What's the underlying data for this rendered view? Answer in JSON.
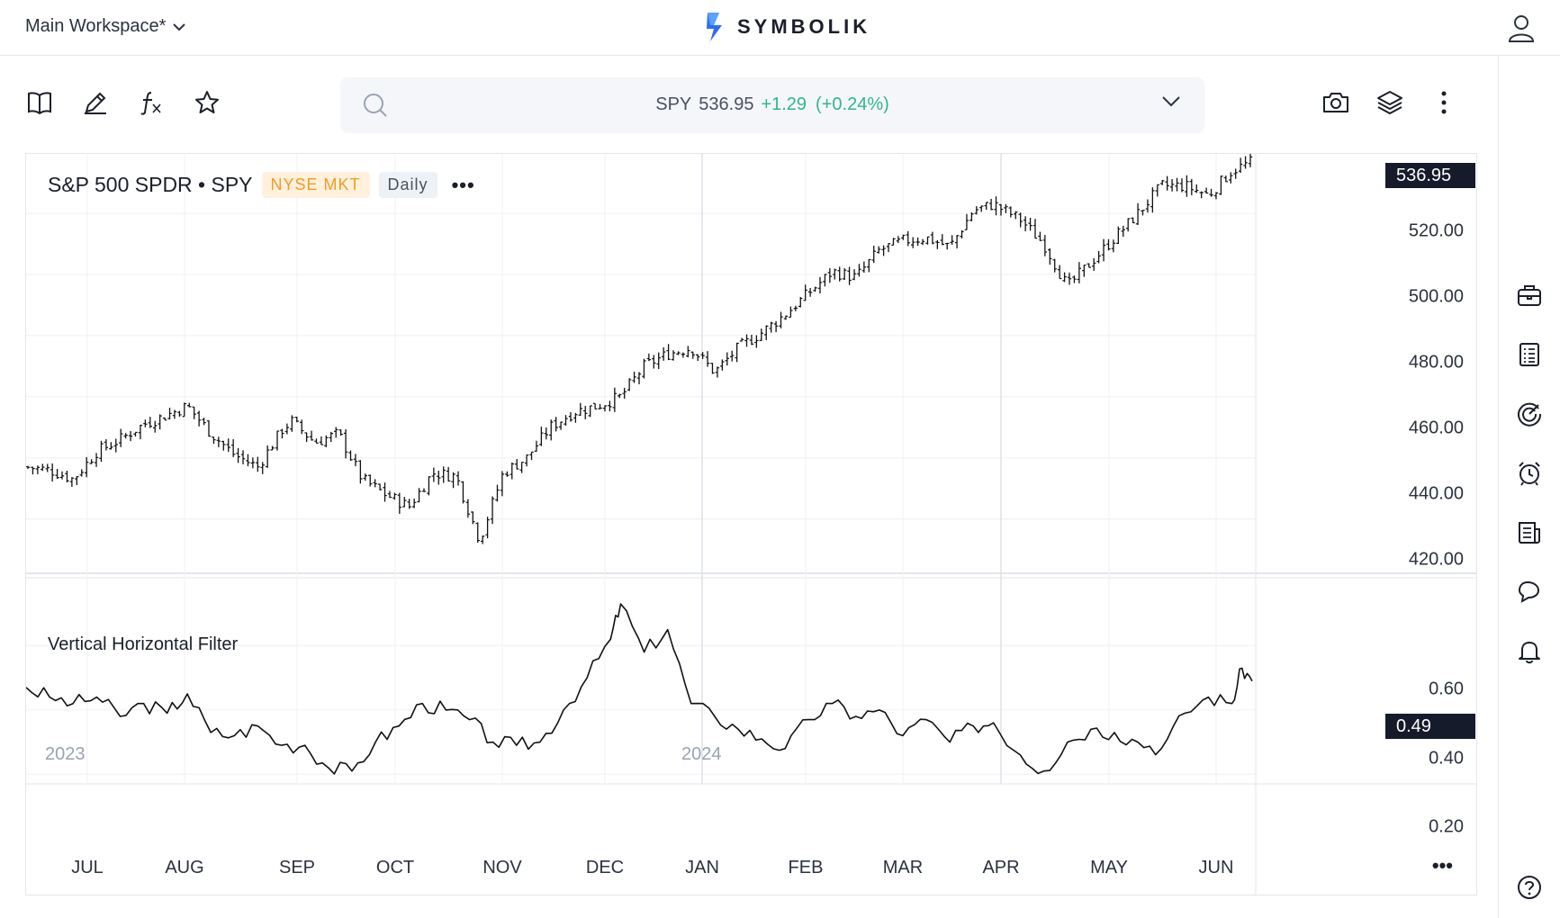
{
  "header": {
    "workspace_label": "Main Workspace*",
    "brand": "SYMBOLIK"
  },
  "search": {
    "symbol": "SPY",
    "price": "536.95",
    "change": "+1.29",
    "change_pct": "(+0.24%)"
  },
  "chart": {
    "title": "S&P 500 SPDR • SPY",
    "exchange_badge": "NYSE MKT",
    "interval_badge": "Daily",
    "more_label": "•••",
    "price_axis": [
      "536.95",
      "520.00",
      "500.00",
      "480.00",
      "460.00",
      "440.00",
      "420.00"
    ],
    "indicator_title": "Vertical Horizontal Filter",
    "indicator_axis": [
      "0.60",
      "0.49",
      "0.40",
      "0.20"
    ],
    "years": [
      "2023",
      "2024"
    ],
    "months": [
      "JUL",
      "AUG",
      "SEP",
      "OCT",
      "NOV",
      "DEC",
      "JAN",
      "FEB",
      "MAR",
      "APR",
      "MAY",
      "JUN"
    ],
    "axis_more_label": "•••"
  },
  "colors": {
    "positive": "#2fb88a",
    "exchange_badge": "#f29b25",
    "last_price_badge": "#161b2b"
  },
  "icons": {
    "toolbar_left": [
      "book-icon",
      "pencil-icon",
      "function-icon",
      "star-icon"
    ],
    "toolbar_right": [
      "camera-icon",
      "layers-icon",
      "kebab-icon"
    ],
    "sidebar": [
      "briefcase-icon",
      "list-icon",
      "gauge-icon",
      "alarm-icon",
      "news-icon",
      "chat-icon",
      "bell-icon",
      "help-icon"
    ]
  },
  "chart_data": [
    {
      "type": "ohlc",
      "ylim": [
        402.5,
        538
      ],
      "price_labels": [
        520,
        500,
        480,
        460,
        440,
        420
      ],
      "last_value": 536.95,
      "x_range": [
        "2023-06-14",
        "2024-06-13"
      ],
      "month_ticks": [
        "JUL",
        "AUG",
        "SEP",
        "OCT",
        "NOV",
        "DEC",
        "JAN",
        "FEB",
        "MAR",
        "APR",
        "MAY",
        "JUN"
      ],
      "series_close": [
        {
          "date": "2023-06-14",
          "close": 437
        },
        {
          "date": "2023-06-21",
          "close": 436
        },
        {
          "date": "2023-06-28",
          "close": 433
        },
        {
          "date": "2023-07-05",
          "close": 442
        },
        {
          "date": "2023-07-12",
          "close": 446
        },
        {
          "date": "2023-07-19",
          "close": 451
        },
        {
          "date": "2023-07-26",
          "close": 454
        },
        {
          "date": "2023-08-01",
          "close": 457
        },
        {
          "date": "2023-08-08",
          "close": 448
        },
        {
          "date": "2023-08-15",
          "close": 441
        },
        {
          "date": "2023-08-22",
          "close": 437
        },
        {
          "date": "2023-08-29",
          "close": 449
        },
        {
          "date": "2023-09-01",
          "close": 452
        },
        {
          "date": "2023-09-08",
          "close": 445
        },
        {
          "date": "2023-09-15",
          "close": 448
        },
        {
          "date": "2023-09-22",
          "close": 433
        },
        {
          "date": "2023-09-29",
          "close": 428
        },
        {
          "date": "2023-10-06",
          "close": 424
        },
        {
          "date": "2023-10-13",
          "close": 435
        },
        {
          "date": "2023-10-20",
          "close": 434
        },
        {
          "date": "2023-10-27",
          "close": 413
        },
        {
          "date": "2023-11-03",
          "close": 435
        },
        {
          "date": "2023-11-10",
          "close": 440
        },
        {
          "date": "2023-11-17",
          "close": 450
        },
        {
          "date": "2023-11-24",
          "close": 455
        },
        {
          "date": "2023-12-01",
          "close": 457
        },
        {
          "date": "2023-12-08",
          "close": 460
        },
        {
          "date": "2023-12-15",
          "close": 470
        },
        {
          "date": "2023-12-22",
          "close": 474
        },
        {
          "date": "2023-12-29",
          "close": 476
        },
        {
          "date": "2024-01-05",
          "close": 468
        },
        {
          "date": "2024-01-12",
          "close": 476
        },
        {
          "date": "2024-01-19",
          "close": 481
        },
        {
          "date": "2024-01-26",
          "close": 487
        },
        {
          "date": "2024-02-02",
          "close": 494
        },
        {
          "date": "2024-02-09",
          "close": 501
        },
        {
          "date": "2024-02-16",
          "close": 499
        },
        {
          "date": "2024-02-23",
          "close": 508
        },
        {
          "date": "2024-03-01",
          "close": 511
        },
        {
          "date": "2024-03-08",
          "close": 512
        },
        {
          "date": "2024-03-15",
          "close": 509
        },
        {
          "date": "2024-03-22",
          "close": 521
        },
        {
          "date": "2024-03-28",
          "close": 523
        },
        {
          "date": "2024-04-05",
          "close": 518
        },
        {
          "date": "2024-04-12",
          "close": 510
        },
        {
          "date": "2024-04-19",
          "close": 496
        },
        {
          "date": "2024-04-26",
          "close": 504
        },
        {
          "date": "2024-05-03",
          "close": 512
        },
        {
          "date": "2024-05-10",
          "close": 520
        },
        {
          "date": "2024-05-17",
          "close": 529
        },
        {
          "date": "2024-05-24",
          "close": 529
        },
        {
          "date": "2024-05-31",
          "close": 526
        },
        {
          "date": "2024-06-07",
          "close": 534
        },
        {
          "date": "2024-06-13",
          "close": 536.95
        }
      ]
    },
    {
      "type": "line",
      "name": "Vertical Horizontal Filter",
      "ylim": [
        0.17,
        0.8
      ],
      "labels": [
        0.6,
        0.4,
        0.2
      ],
      "last_value": 0.49,
      "series": [
        {
          "date": "2023-06-14",
          "value": 0.47
        },
        {
          "date": "2023-06-21",
          "value": 0.44
        },
        {
          "date": "2023-06-28",
          "value": 0.42
        },
        {
          "date": "2023-07-05",
          "value": 0.44
        },
        {
          "date": "2023-07-12",
          "value": 0.38
        },
        {
          "date": "2023-07-19",
          "value": 0.42
        },
        {
          "date": "2023-07-26",
          "value": 0.39
        },
        {
          "date": "2023-08-01",
          "value": 0.45
        },
        {
          "date": "2023-08-08",
          "value": 0.33
        },
        {
          "date": "2023-08-15",
          "value": 0.32
        },
        {
          "date": "2023-08-22",
          "value": 0.35
        },
        {
          "date": "2023-08-29",
          "value": 0.29
        },
        {
          "date": "2023-09-05",
          "value": 0.29
        },
        {
          "date": "2023-09-12",
          "value": 0.22
        },
        {
          "date": "2023-09-19",
          "value": 0.21
        },
        {
          "date": "2023-09-26",
          "value": 0.3
        },
        {
          "date": "2023-10-03",
          "value": 0.35
        },
        {
          "date": "2023-10-10",
          "value": 0.42
        },
        {
          "date": "2023-10-17",
          "value": 0.4
        },
        {
          "date": "2023-10-24",
          "value": 0.37
        },
        {
          "date": "2023-10-31",
          "value": 0.3
        },
        {
          "date": "2023-11-07",
          "value": 0.29
        },
        {
          "date": "2023-11-14",
          "value": 0.3
        },
        {
          "date": "2023-11-21",
          "value": 0.4
        },
        {
          "date": "2023-11-28",
          "value": 0.5
        },
        {
          "date": "2023-12-05",
          "value": 0.62
        },
        {
          "date": "2023-12-08",
          "value": 0.73
        },
        {
          "date": "2023-12-15",
          "value": 0.58
        },
        {
          "date": "2023-12-22",
          "value": 0.65
        },
        {
          "date": "2023-12-29",
          "value": 0.42
        },
        {
          "date": "2024-01-05",
          "value": 0.38
        },
        {
          "date": "2024-01-12",
          "value": 0.34
        },
        {
          "date": "2024-01-19",
          "value": 0.31
        },
        {
          "date": "2024-01-26",
          "value": 0.28
        },
        {
          "date": "2024-02-02",
          "value": 0.37
        },
        {
          "date": "2024-02-09",
          "value": 0.42
        },
        {
          "date": "2024-02-16",
          "value": 0.38
        },
        {
          "date": "2024-02-23",
          "value": 0.4
        },
        {
          "date": "2024-03-01",
          "value": 0.32
        },
        {
          "date": "2024-03-08",
          "value": 0.37
        },
        {
          "date": "2024-03-15",
          "value": 0.3
        },
        {
          "date": "2024-03-22",
          "value": 0.35
        },
        {
          "date": "2024-03-28",
          "value": 0.36
        },
        {
          "date": "2024-04-05",
          "value": 0.26
        },
        {
          "date": "2024-04-12",
          "value": 0.21
        },
        {
          "date": "2024-04-19",
          "value": 0.3
        },
        {
          "date": "2024-04-26",
          "value": 0.34
        },
        {
          "date": "2024-05-03",
          "value": 0.33
        },
        {
          "date": "2024-05-10",
          "value": 0.3
        },
        {
          "date": "2024-05-17",
          "value": 0.28
        },
        {
          "date": "2024-05-24",
          "value": 0.39
        },
        {
          "date": "2024-05-31",
          "value": 0.44
        },
        {
          "date": "2024-06-07",
          "value": 0.42
        },
        {
          "date": "2024-06-10",
          "value": 0.53
        },
        {
          "date": "2024-06-13",
          "value": 0.49
        }
      ]
    }
  ]
}
